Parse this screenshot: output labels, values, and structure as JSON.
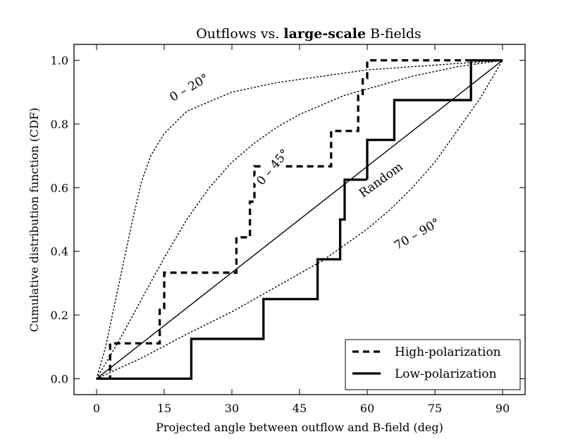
{
  "chart_data": {
    "type": "line",
    "title_prefix": "Outflows vs. ",
    "title_bold": "large-scale",
    "title_suffix": " B-fields",
    "xlabel": "Projected angle between outflow and B-field (deg)",
    "ylabel": "Cumulative distribution function (CDF)",
    "xlim": [
      -5,
      95
    ],
    "ylim": [
      -0.05,
      1.05
    ],
    "xticks": [
      0,
      15,
      30,
      45,
      60,
      75,
      90
    ],
    "yticks": [
      0.0,
      0.2,
      0.4,
      0.6,
      0.8,
      1.0
    ],
    "ytick_labels": [
      "0.0",
      "0.2",
      "0.4",
      "0.6",
      "0.8",
      "1.0"
    ],
    "series": [
      {
        "name": "High-polarization",
        "style": "dashed-step",
        "x": [
          0,
          3,
          3,
          14,
          14,
          15,
          15,
          31,
          31,
          34,
          34,
          35,
          35,
          52,
          52,
          58,
          58,
          59,
          59,
          60,
          60,
          90
        ],
        "y": [
          0,
          0,
          0.111,
          0.111,
          0.222,
          0.222,
          0.333,
          0.333,
          0.444,
          0.444,
          0.556,
          0.556,
          0.667,
          0.667,
          0.778,
          0.778,
          0.889,
          0.889,
          0.944,
          0.944,
          1.0,
          1.0
        ]
      },
      {
        "name": "Low-polarization",
        "style": "solid-step",
        "x": [
          0,
          21,
          21,
          37,
          37,
          49,
          49,
          54,
          54,
          55,
          55,
          60,
          60,
          66,
          66,
          83,
          83,
          90
        ],
        "y": [
          0,
          0,
          0.125,
          0.125,
          0.25,
          0.25,
          0.375,
          0.375,
          0.5,
          0.5,
          0.625,
          0.625,
          0.75,
          0.75,
          0.875,
          0.875,
          1.0,
          1.0
        ]
      },
      {
        "name": "Random",
        "style": "solid-thin",
        "x": [
          0,
          90
        ],
        "y": [
          0,
          1
        ]
      },
      {
        "name": "0 – 20°",
        "style": "dotted",
        "x": [
          0,
          2,
          5,
          8,
          10,
          12,
          15,
          20,
          30,
          40,
          50,
          60,
          70,
          80,
          90
        ],
        "y": [
          0,
          0.1,
          0.3,
          0.5,
          0.62,
          0.7,
          0.77,
          0.84,
          0.9,
          0.93,
          0.95,
          0.97,
          0.98,
          0.99,
          1.0
        ]
      },
      {
        "name": "0 – 45°",
        "style": "dotted",
        "x": [
          0,
          5,
          10,
          15,
          20,
          25,
          30,
          35,
          40,
          45,
          50,
          55,
          60,
          70,
          80,
          90
        ],
        "y": [
          0,
          0.12,
          0.25,
          0.38,
          0.5,
          0.6,
          0.68,
          0.74,
          0.79,
          0.83,
          0.86,
          0.89,
          0.91,
          0.95,
          0.98,
          1.0
        ]
      },
      {
        "name": "70 – 90°",
        "style": "dotted",
        "x": [
          0,
          10,
          20,
          30,
          40,
          50,
          55,
          60,
          65,
          70,
          75,
          80,
          85,
          90
        ],
        "y": [
          0,
          0.065,
          0.14,
          0.21,
          0.29,
          0.37,
          0.42,
          0.47,
          0.53,
          0.6,
          0.68,
          0.78,
          0.88,
          1.0
        ]
      }
    ],
    "annotations": [
      {
        "text": "0 – 20°",
        "x": 20.5,
        "y": 0.915,
        "angle": -30
      },
      {
        "text": "0 – 45°",
        "x": 39,
        "y": 0.665,
        "angle": -50
      },
      {
        "text": "Random",
        "x": 63,
        "y": 0.625,
        "angle": -36
      },
      {
        "text": "70 – 90°",
        "x": 71,
        "y": 0.455,
        "angle": -30
      }
    ],
    "legend": {
      "position": "lower-right",
      "entries": [
        "High-polarization",
        "Low-polarization"
      ]
    }
  }
}
